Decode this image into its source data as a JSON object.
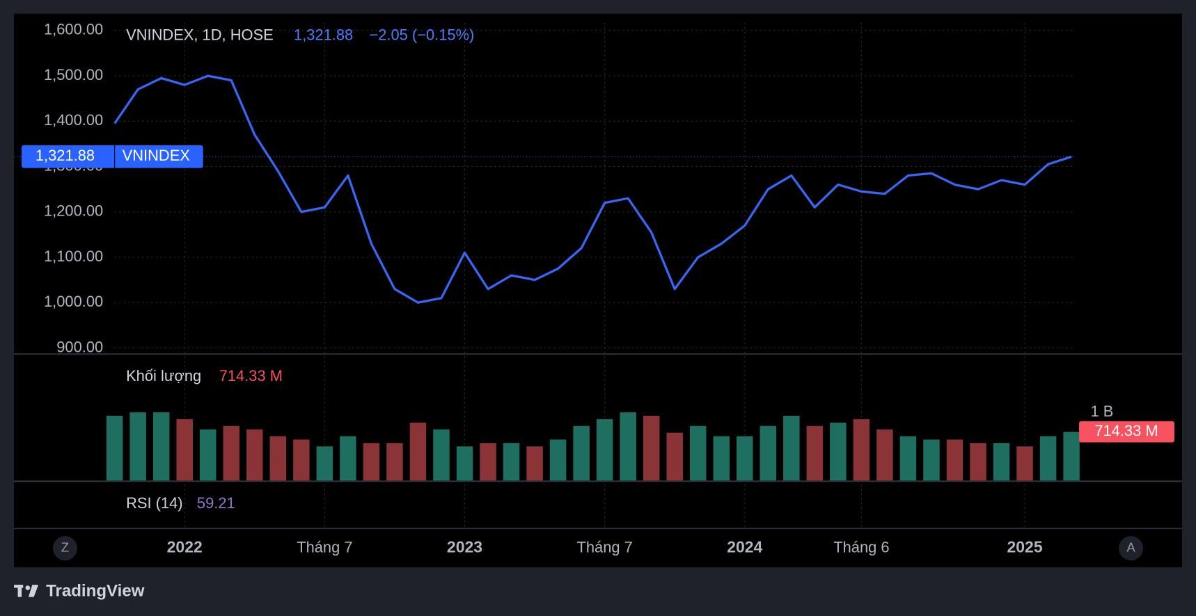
{
  "chart_data": {
    "type": "line",
    "title": "VNINDEX, 1D, HOSE",
    "last_value_label": "1,321.88",
    "change_label": "−2.05 (−0.15%)",
    "x": [
      "2021-10",
      "2021-11",
      "2021-12",
      "2022-01",
      "2022-02",
      "2022-03",
      "2022-04",
      "2022-05",
      "2022-06",
      "2022-07",
      "2022-08",
      "2022-09",
      "2022-10",
      "2022-11",
      "2022-12",
      "2023-01",
      "2023-02",
      "2023-03",
      "2023-04",
      "2023-05",
      "2023-06",
      "2023-07",
      "2023-08",
      "2023-09",
      "2023-10",
      "2023-11",
      "2023-12",
      "2024-01",
      "2024-02",
      "2024-03",
      "2024-04",
      "2024-05",
      "2024-06",
      "2024-07",
      "2024-08",
      "2024-09",
      "2024-10",
      "2024-11",
      "2024-12",
      "2025-01",
      "2025-02",
      "2025-03"
    ],
    "series": [
      {
        "name": "VNINDEX",
        "color": "#3866f5",
        "values": [
          1395,
          1470,
          1495,
          1480,
          1500,
          1490,
          1370,
          1290,
          1200,
          1210,
          1280,
          1130,
          1030,
          1000,
          1010,
          1110,
          1030,
          1060,
          1050,
          1075,
          1120,
          1220,
          1230,
          1155,
          1030,
          1100,
          1130,
          1170,
          1250,
          1280,
          1210,
          1260,
          1245,
          1240,
          1280,
          1285,
          1260,
          1250,
          1270,
          1260,
          1305,
          1321.88
        ]
      }
    ],
    "ylim": [
      900,
      1600
    ],
    "yticks": [
      {
        "value": 900,
        "label": "900.00"
      },
      {
        "value": 1000,
        "label": "1,000.00"
      },
      {
        "value": 1100,
        "label": "1,100.00"
      },
      {
        "value": 1200,
        "label": "1,200.00"
      },
      {
        "value": 1300,
        "label": "1,300.00"
      },
      {
        "value": 1400,
        "label": "1,400.00"
      },
      {
        "value": 1500,
        "label": "1,500.00"
      },
      {
        "value": 1600,
        "label": "1,600.00"
      }
    ],
    "xticks": [
      {
        "value": "2022-01",
        "label": "2022"
      },
      {
        "value": "2022-07",
        "label": "Tháng 7"
      },
      {
        "value": "2023-01",
        "label": "2023"
      },
      {
        "value": "2023-07",
        "label": "Tháng 7"
      },
      {
        "value": "2024-01",
        "label": "2024"
      },
      {
        "value": "2024-06",
        "label": "Tháng 6"
      },
      {
        "value": "2025-01",
        "label": "2025"
      }
    ],
    "grid": true,
    "volume": {
      "label": "Khối lượng",
      "last_label": "714.33 M",
      "up_color": "#1f6f60",
      "down_color": "#8a3438",
      "values": [
        950000000,
        1000000000,
        1000000000,
        900000000,
        750000000,
        800000000,
        750000000,
        650000000,
        600000000,
        500000000,
        650000000,
        550000000,
        550000000,
        850000000,
        750000000,
        500000000,
        550000000,
        550000000,
        500000000,
        600000000,
        800000000,
        900000000,
        1000000000,
        950000000,
        700000000,
        800000000,
        650000000,
        650000000,
        800000000,
        950000000,
        800000000,
        850000000,
        900000000,
        750000000,
        650000000,
        600000000,
        600000000,
        550000000,
        550000000,
        500000000,
        650000000,
        714330000
      ],
      "ylim": [
        0,
        1800000000
      ],
      "yticks": [
        {
          "value": 1000000000,
          "label": "1 B"
        }
      ]
    },
    "rsi": {
      "label": "RSI (14)",
      "value": 59.21
    },
    "buttons": [
      "Z",
      "A"
    ],
    "brand": "TradingView"
  }
}
